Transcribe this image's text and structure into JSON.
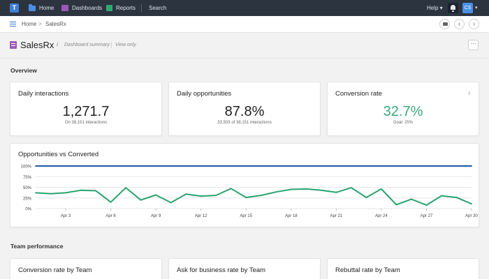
{
  "topnav": {
    "logo_letter": "T",
    "items": [
      {
        "label": "Home",
        "icon": "folder-icon"
      },
      {
        "label": "Dashboards",
        "icon": "dashboard-icon"
      },
      {
        "label": "Reports",
        "icon": "reports-icon"
      },
      {
        "label": "Search"
      }
    ],
    "help_label": "Help",
    "user_initials": "CS"
  },
  "breadcrumb": {
    "home": "Home",
    "separator": ">",
    "current": "SalesRx",
    "prev_glyph": "‹",
    "next_glyph": "›"
  },
  "page": {
    "title": "SalesRx",
    "info_glyph": "i",
    "subtitle": "Dashboard summary",
    "mode": "View only",
    "more_glyph": "···"
  },
  "sections": {
    "overview": "Overview",
    "team": "Team performance"
  },
  "kpis": [
    {
      "title": "Daily interactions",
      "value": "1,271.7",
      "sub": "On 38,151 interactions"
    },
    {
      "title": "Daily opportunities",
      "value": "87.8%",
      "sub": "33,503 of 38,151 interactions"
    },
    {
      "title": "Conversion rate",
      "value": "32.7%",
      "sub": "Goal: 25%",
      "info": "i"
    }
  ],
  "chart_data": {
    "type": "line",
    "title": "Opportunities vs Converted",
    "x": [
      "Apr 1",
      "Apr 2",
      "Apr 3",
      "Apr 4",
      "Apr 5",
      "Apr 6",
      "Apr 7",
      "Apr 8",
      "Apr 9",
      "Apr 10",
      "Apr 11",
      "Apr 12",
      "Apr 13",
      "Apr 14",
      "Apr 15",
      "Apr 16",
      "Apr 17",
      "Apr 18",
      "Apr 19",
      "Apr 20",
      "Apr 21",
      "Apr 22",
      "Apr 23",
      "Apr 24",
      "Apr 25",
      "Apr 26",
      "Apr 27",
      "Apr 28",
      "Apr 29",
      "Apr 30"
    ],
    "tick_labels": [
      "Apr 3",
      "Apr 6",
      "Apr 9",
      "Apr 12",
      "Apr 15",
      "Apr 18",
      "Apr 21",
      "Apr 24",
      "Apr 27",
      "Apr 30"
    ],
    "series": [
      {
        "color": "#2a5fa8",
        "values": [
          100,
          100,
          100,
          100,
          100,
          100,
          100,
          100,
          100,
          100,
          100,
          100,
          100,
          100,
          100,
          100,
          100,
          100,
          100,
          100,
          100,
          100,
          100,
          100,
          100,
          100,
          100,
          100,
          100,
          100
        ]
      },
      {
        "color": "#2aa36f",
        "values": [
          37,
          35,
          37,
          43,
          42,
          15,
          49,
          20,
          32,
          14,
          34,
          29,
          31,
          47,
          26,
          31,
          39,
          45,
          46,
          43,
          38,
          49,
          26,
          46,
          9,
          22,
          8,
          30,
          26,
          11
        ]
      }
    ],
    "y_ticks": [
      "100%",
      "75%",
      "50%",
      "25%",
      "0%"
    ],
    "ylim": [
      0,
      100
    ],
    "grid": true
  },
  "team_cards": [
    {
      "title": "Conversion rate by Team"
    },
    {
      "title": "Ask for business rate by Team"
    },
    {
      "title": "Rebuttal rate by Team"
    }
  ],
  "colors": {
    "topbar": "#2c3440",
    "accent_blue": "#2f6fd1",
    "kpi_green": "#3aa97a"
  }
}
